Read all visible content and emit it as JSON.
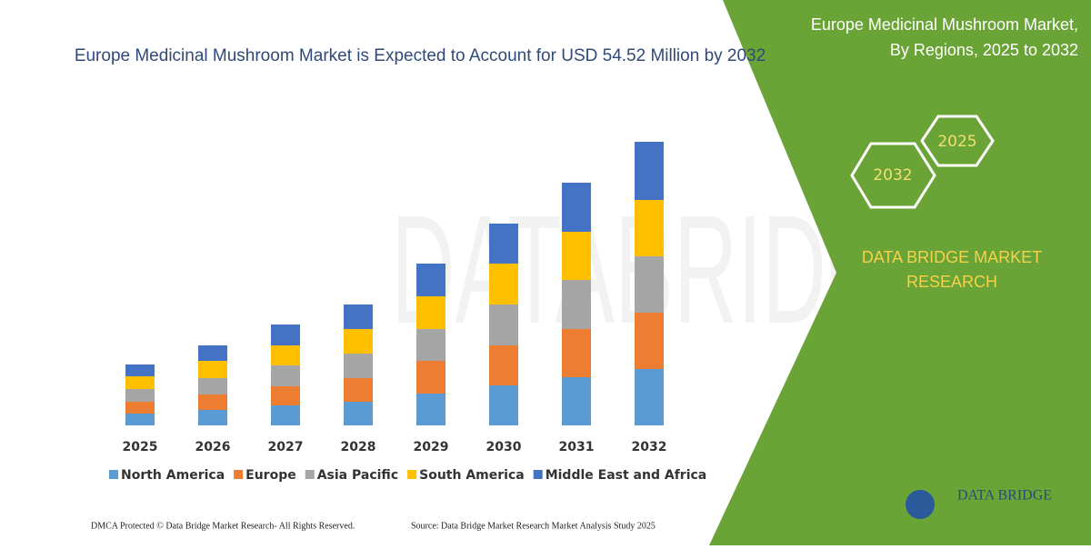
{
  "chart_data": {
    "type": "stacked_bar",
    "title": "Europe Medicinal Mushroom Market is Expected to Account for USD 54.52 Million by 2032",
    "categories": [
      "2025",
      "2026",
      "2027",
      "2028",
      "2029",
      "2030",
      "2031",
      "2032"
    ],
    "series": [
      {
        "name": "North America",
        "color": "#5b9bd5",
        "values": [
          13,
          17,
          22,
          26,
          35,
          44,
          53,
          62
        ]
      },
      {
        "name": "Europe",
        "color": "#ed7d31",
        "values": [
          13,
          17,
          21,
          26,
          36,
          44,
          53,
          62
        ]
      },
      {
        "name": "Asia Pacific",
        "color": "#a5a5a5",
        "values": [
          14,
          18,
          23,
          27,
          35,
          45,
          54,
          62
        ]
      },
      {
        "name": "South America",
        "color": "#ffc000",
        "values": [
          14,
          19,
          22,
          27,
          36,
          45,
          53,
          62
        ]
      },
      {
        "name": "Middle East and Africa",
        "color": "#4472c4",
        "values": [
          13,
          17,
          23,
          27,
          36,
          44,
          54,
          64
        ]
      }
    ]
  },
  "panel": {
    "title_line1": "Europe Medicinal Mushroom Market,",
    "title_line2": "By Regions, 2025 to 2032",
    "hex_start": "2025",
    "hex_end": "2032",
    "brand_line1": "DATA BRIDGE MARKET",
    "brand_line2": "RESEARCH",
    "logo": "DATA BRIDGE"
  },
  "footer": {
    "left": "DMCA Protected © Data Bridge Market Research- All Rights Reserved.",
    "right": "Source: Data Bridge Market Research Market Analysis Study 2025"
  }
}
